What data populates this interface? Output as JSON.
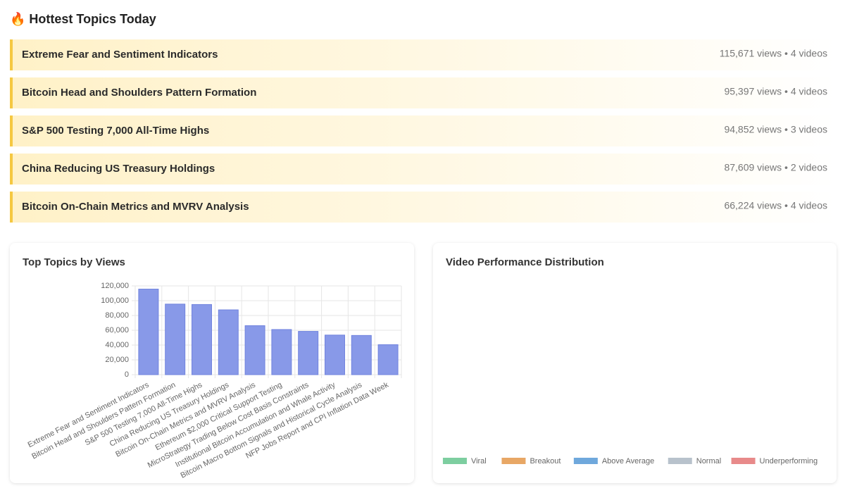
{
  "header": {
    "title": "🔥 Hottest Topics Today"
  },
  "topics": [
    {
      "name": "Extreme Fear and Sentiment Indicators",
      "stats": "115,671 views • 4 videos"
    },
    {
      "name": "Bitcoin Head and Shoulders Pattern Formation",
      "stats": "95,397 views • 4 videos"
    },
    {
      "name": "S&P 500 Testing 7,000 All-Time Highs",
      "stats": "94,852 views • 3 videos"
    },
    {
      "name": "China Reducing US Treasury Holdings",
      "stats": "87,609 views • 2 videos"
    },
    {
      "name": "Bitcoin On-Chain Metrics and MVRV Analysis",
      "stats": "66,224 views • 4 videos"
    }
  ],
  "chart_data": [
    {
      "type": "bar",
      "title": "Top Topics by Views",
      "categories": [
        "Extreme Fear and Sentiment Indicators",
        "Bitcoin Head and Shoulders Pattern Formation",
        "S&P 500 Testing 7,000 All-Time Highs",
        "China Reducing US Treasury Holdings",
        "Bitcoin On-Chain Metrics and MVRV Analysis",
        "Ethereum $2,000 Critical Support Testing",
        "MicroStrategy Trading Below Cost Basis Constraints",
        "Institutional Bitcoin Accumulation and Whale Activity",
        "Bitcoin Macro Bottom Signals and Historical Cycle Analysis",
        "NFP Jobs Report and CPI Inflation Data Week"
      ],
      "values": [
        115671,
        95397,
        94852,
        87609,
        66224,
        61000,
        58500,
        53500,
        53000,
        40500
      ],
      "color": "#8899e8",
      "ylim": [
        0,
        120000
      ],
      "yticks": [
        0,
        {
          "value": 20000,
          "label": "20,000"
        },
        {
          "value": 40000,
          "label": "40,000"
        },
        {
          "value": 60000,
          "label": "60,000"
        },
        {
          "value": 80000,
          "label": "80,000"
        },
        {
          "value": 100000,
          "label": "100,000"
        },
        {
          "value": 120000,
          "label": "120,000"
        }
      ],
      "grid": true
    },
    {
      "type": "doughnut",
      "title": "Video Performance Distribution",
      "series": [
        {
          "name": "Viral",
          "color": "#7dcea0"
        },
        {
          "name": "Breakout",
          "color": "#e8a765"
        },
        {
          "name": "Above Average",
          "color": "#6fa8dc"
        },
        {
          "name": "Normal",
          "color": "#b8c2cc"
        },
        {
          "name": "Underperforming",
          "color": "#e88a8a"
        }
      ],
      "legend": "bottom"
    }
  ]
}
